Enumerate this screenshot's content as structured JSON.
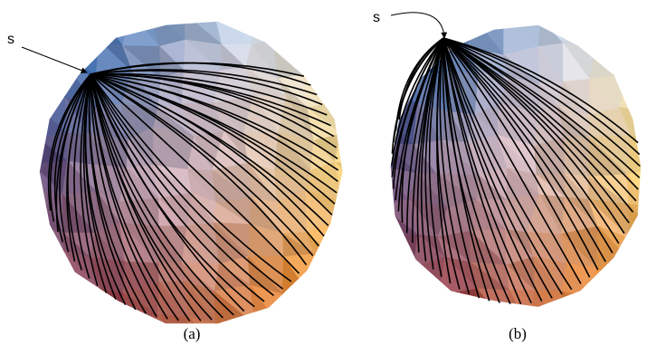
{
  "panels": [
    {
      "source_label": "s",
      "caption": "(a)"
    },
    {
      "source_label": "s",
      "caption": "(b)"
    }
  ]
}
